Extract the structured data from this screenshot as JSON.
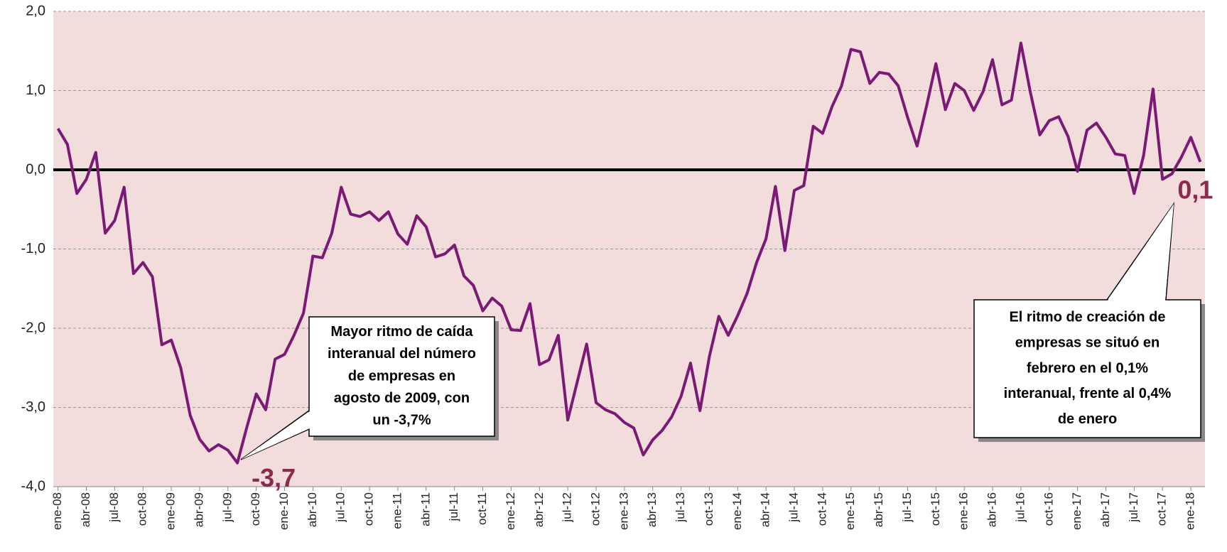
{
  "chart_data": {
    "type": "line",
    "categories": [
      "ene-08",
      null,
      null,
      "abr-08",
      null,
      null,
      "jul-08",
      null,
      null,
      "oct-08",
      null,
      null,
      "ene-09",
      null,
      null,
      "abr-09",
      null,
      null,
      "jul-09",
      null,
      null,
      "oct-09",
      null,
      null,
      "ene-10",
      null,
      null,
      "abr-10",
      null,
      null,
      "jul-10",
      null,
      null,
      "oct-10",
      null,
      null,
      "ene-11",
      null,
      null,
      "abr-11",
      null,
      null,
      "jul-11",
      null,
      null,
      "oct-11",
      null,
      null,
      "ene-12",
      null,
      null,
      "abr-12",
      null,
      null,
      "jul-12",
      null,
      null,
      "oct-12",
      null,
      null,
      "ene-13",
      null,
      null,
      "abr-13",
      null,
      null,
      "jul-13",
      null,
      null,
      "oct-13",
      null,
      null,
      "ene-14",
      null,
      null,
      "abr-14",
      null,
      null,
      "jul-14",
      null,
      null,
      "oct-14",
      null,
      null,
      "ene-15",
      null,
      null,
      "abr-15",
      null,
      null,
      "jul-15",
      null,
      null,
      "oct-15",
      null,
      null,
      "ene-16",
      null,
      null,
      "abr-16",
      null,
      null,
      "jul-16",
      null,
      null,
      "oct-16",
      null,
      null,
      "ene-17",
      null,
      null,
      "abr-17",
      null,
      null,
      "jul-17",
      null,
      null,
      "oct-17",
      null,
      null,
      "ene-18",
      null
    ],
    "values": [
      0.52,
      0.32,
      -0.3,
      -0.12,
      0.22,
      -0.8,
      -0.64,
      -0.22,
      -1.31,
      -1.17,
      -1.35,
      -2.21,
      -2.15,
      -2.5,
      -3.1,
      -3.4,
      -3.55,
      -3.47,
      -3.54,
      -3.7,
      -3.25,
      -2.83,
      -3.03,
      -2.39,
      -2.33,
      -2.09,
      -1.81,
      -1.09,
      -1.11,
      -0.8,
      -0.22,
      -0.56,
      -0.59,
      -0.53,
      -0.64,
      -0.53,
      -0.81,
      -0.94,
      -0.58,
      -0.72,
      -1.1,
      -1.06,
      -0.95,
      -1.34,
      -1.46,
      -1.78,
      -1.62,
      -1.72,
      -2.02,
      -2.03,
      -1.69,
      -2.46,
      -2.4,
      -2.09,
      -3.16,
      -2.68,
      -2.2,
      -2.94,
      -3.03,
      -3.08,
      -3.19,
      -3.26,
      -3.6,
      -3.41,
      -3.29,
      -3.12,
      -2.86,
      -2.44,
      -3.04,
      -2.36,
      -1.85,
      -2.09,
      -1.84,
      -1.56,
      -1.17,
      -0.87,
      -0.21,
      -1.02,
      -0.26,
      -0.2,
      0.55,
      0.46,
      0.8,
      1.06,
      1.52,
      1.49,
      1.09,
      1.23,
      1.21,
      1.06,
      0.66,
      0.3,
      0.8,
      1.34,
      0.76,
      1.09,
      1.0,
      0.75,
      0.99,
      1.39,
      0.82,
      0.88,
      1.6,
      0.98,
      0.44,
      0.62,
      0.67,
      0.42,
      -0.02,
      0.5,
      0.59,
      0.41,
      0.2,
      0.18,
      -0.3,
      0.18,
      1.02,
      -0.12,
      -0.05,
      0.16,
      0.41,
      0.1
    ],
    "value_labels": [
      null,
      null,
      null,
      null,
      null,
      null,
      null,
      null,
      null,
      null,
      null,
      null,
      null,
      null,
      null,
      null,
      null,
      null,
      null,
      "-3,7",
      null,
      null,
      null,
      null,
      null,
      null,
      null,
      null,
      null,
      null,
      null,
      null,
      null,
      null,
      null,
      null,
      null,
      null,
      null,
      null,
      null,
      null,
      null,
      null,
      null,
      null,
      null,
      null,
      null,
      null,
      null,
      null,
      null,
      null,
      null,
      null,
      null,
      null,
      null,
      null,
      null,
      null,
      null,
      null,
      null,
      null,
      null,
      null,
      null,
      null,
      null,
      null,
      null,
      null,
      null,
      null,
      null,
      null,
      null,
      null,
      null,
      null,
      null,
      null,
      null,
      null,
      null,
      null,
      null,
      null,
      null,
      null,
      null,
      null,
      null,
      null,
      null,
      null,
      null,
      null,
      null,
      null,
      null,
      null,
      null,
      null,
      null,
      null,
      null,
      null,
      null,
      null,
      null,
      null,
      null,
      null,
      null,
      null,
      null,
      null,
      null,
      "0,1"
    ],
    "color": "#7a1a74",
    "ylim": [
      -4,
      2
    ],
    "yticks": [
      {
        "value": -4,
        "label": "-4,0"
      },
      {
        "value": -3,
        "label": "-3,0"
      },
      {
        "value": -2,
        "label": "-2,0"
      },
      {
        "value": -1,
        "label": "-1,0"
      },
      {
        "value": 0,
        "label": "0,0"
      },
      {
        "value": 1,
        "label": "1,0"
      },
      {
        "value": 2,
        "label": "2,0"
      }
    ],
    "grid": true,
    "annotations": [
      {
        "lines": [
          "Mayor ritmo de caída",
          "interanual del número",
          "de empresas en",
          "agosto de 2009, con",
          "un -3,7%"
        ]
      },
      {
        "lines": [
          "El ritmo de creación de",
          "empresas se situó en",
          "febrero en el 0,1%",
          "interanual, frente al 0,4%",
          "de enero"
        ]
      }
    ]
  }
}
